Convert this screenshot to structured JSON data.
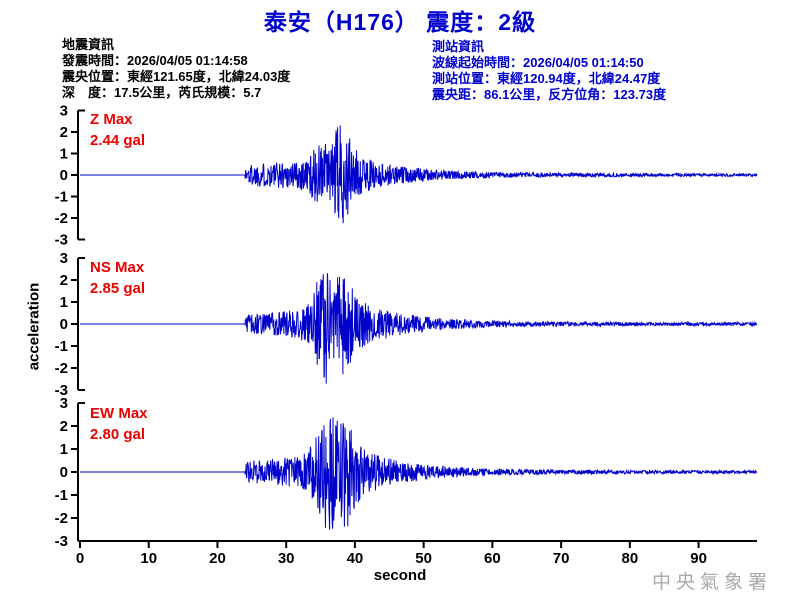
{
  "header": {
    "title": "泰安（H176） 震度：2級"
  },
  "info_left": {
    "lines": [
      "地震資訊",
      "發震時間：2026/04/05 01:14:58",
      "震央位置：東經121.65度，北緯24.03度",
      "深　度：17.5公里，芮氏規模：5.7"
    ]
  },
  "info_right": {
    "lines": [
      "測站資訊",
      "波線起始時間：2026/04/05 01:14:50",
      "測站位置：東經120.94度，北緯24.47度",
      "震央距：86.1公里，反方位角：123.73度"
    ]
  },
  "watermark": "中央氣象署",
  "colors": {
    "title_blue": "#0000cc",
    "trace_blue": "#0000cc",
    "max_red": "#ee0000",
    "axis_black": "#000000",
    "watermark_gray": "#a9a9a9"
  },
  "chart_data": {
    "type": "line",
    "subtype": "seismogram-3-component",
    "title": "泰安（H176） 震度：2級",
    "xlabel": "second",
    "ylabel": "acceleration",
    "xlim": [
      0,
      98.5
    ],
    "ylim": [
      -3,
      3
    ],
    "x_ticks": [
      0,
      10,
      20,
      30,
      40,
      50,
      60,
      70,
      80,
      90
    ],
    "y_ticks": [
      3,
      2,
      1,
      0,
      -1,
      -2,
      -3
    ],
    "grid": false,
    "legend": "none",
    "p_wave_onset_s": 24,
    "s_wave_peak_s": 37,
    "channels": [
      {
        "name": "Z",
        "max_label": "Z Max",
        "max_text": "2.44 gal",
        "max_gal": 2.44,
        "envelope": [
          [
            0,
            0
          ],
          [
            23.9,
            0
          ],
          [
            24.2,
            0.5
          ],
          [
            26,
            0.55
          ],
          [
            28,
            0.6
          ],
          [
            31,
            0.65
          ],
          [
            33,
            0.8
          ],
          [
            34.3,
            1.3
          ],
          [
            35.3,
            1.7
          ],
          [
            36.3,
            1.2
          ],
          [
            37.6,
            2.44
          ],
          [
            38.7,
            2.25
          ],
          [
            39.6,
            1.35
          ],
          [
            41,
            0.9
          ],
          [
            43,
            0.62
          ],
          [
            46,
            0.42
          ],
          [
            50,
            0.3
          ],
          [
            54,
            0.2
          ],
          [
            58,
            0.15
          ],
          [
            64,
            0.11
          ],
          [
            72,
            0.09
          ],
          [
            82,
            0.07
          ],
          [
            98.5,
            0.06
          ]
        ]
      },
      {
        "name": "NS",
        "max_label": "NS Max",
        "max_text": "2.85 gal",
        "max_gal": 2.85,
        "envelope": [
          [
            0,
            0
          ],
          [
            23.9,
            0
          ],
          [
            24.2,
            0.42
          ],
          [
            26,
            0.5
          ],
          [
            29,
            0.55
          ],
          [
            32,
            0.7
          ],
          [
            33.8,
            1.1
          ],
          [
            34.8,
            2.5
          ],
          [
            35.6,
            2.85
          ],
          [
            36.6,
            2.3
          ],
          [
            37.8,
            2.55
          ],
          [
            39,
            2.0
          ],
          [
            40.3,
            1.25
          ],
          [
            42,
            0.95
          ],
          [
            44,
            0.7
          ],
          [
            47,
            0.48
          ],
          [
            50,
            0.34
          ],
          [
            54,
            0.24
          ],
          [
            58,
            0.17
          ],
          [
            64,
            0.12
          ],
          [
            72,
            0.09
          ],
          [
            82,
            0.08
          ],
          [
            98.5,
            0.07
          ]
        ]
      },
      {
        "name": "EW",
        "max_label": "EW Max",
        "max_text": "2.80 gal",
        "max_gal": 2.8,
        "envelope": [
          [
            0,
            0
          ],
          [
            23.9,
            0
          ],
          [
            24.2,
            0.45
          ],
          [
            26,
            0.55
          ],
          [
            29,
            0.6
          ],
          [
            32,
            0.68
          ],
          [
            33.8,
            1.2
          ],
          [
            35.2,
            2.1
          ],
          [
            36.2,
            2.8
          ],
          [
            37.4,
            2.3
          ],
          [
            38.7,
            2.6
          ],
          [
            40,
            1.5
          ],
          [
            41.6,
            1.0
          ],
          [
            43.6,
            0.72
          ],
          [
            46,
            0.5
          ],
          [
            50,
            0.33
          ],
          [
            54,
            0.22
          ],
          [
            59,
            0.15
          ],
          [
            65,
            0.11
          ],
          [
            73,
            0.09
          ],
          [
            83,
            0.07
          ],
          [
            98.5,
            0.06
          ]
        ]
      }
    ]
  }
}
